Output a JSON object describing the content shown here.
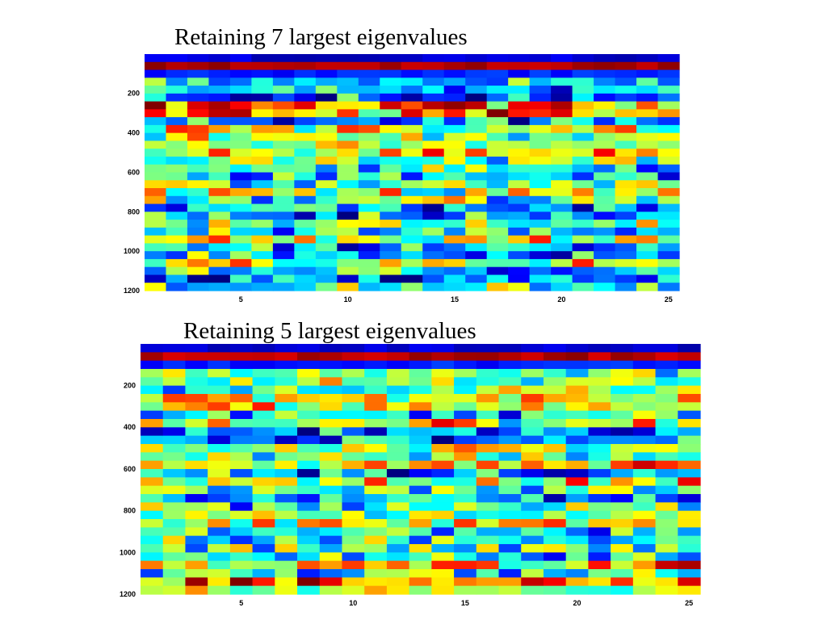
{
  "chart_data": [
    {
      "type": "heatmap",
      "title": "Retaining 7 largest eigenvalues",
      "xlabel": "",
      "ylabel": "",
      "x_range": [
        0.5,
        25.5
      ],
      "y_range": [
        1,
        1200
      ],
      "y_reversed": true,
      "xticks": [
        5,
        10,
        15,
        20,
        25
      ],
      "yticks": [
        200,
        400,
        600,
        800,
        1000,
        1200
      ],
      "colormap": "jet",
      "n_columns": 25,
      "n_rows": 30,
      "grid": false
    },
    {
      "type": "heatmap",
      "title": "Retaining 5 largest eigenvalues",
      "xlabel": "",
      "ylabel": "",
      "x_range": [
        0.5,
        25.5
      ],
      "y_range": [
        1,
        1200
      ],
      "y_reversed": true,
      "xticks": [
        5,
        10,
        15,
        20,
        25
      ],
      "yticks": [
        200,
        400,
        600,
        800,
        1000,
        1200
      ],
      "colormap": "jet",
      "n_columns": 25,
      "n_rows": 30,
      "grid": false
    }
  ],
  "colors": {
    "jet_dark_blue": "#00008f",
    "jet_blue": "#0000ff",
    "jet_cyan": "#00ffff",
    "jet_yellow": "#ffff00",
    "jet_red": "#ff0000",
    "jet_dark_red": "#800000",
    "background": "#ffffff"
  }
}
